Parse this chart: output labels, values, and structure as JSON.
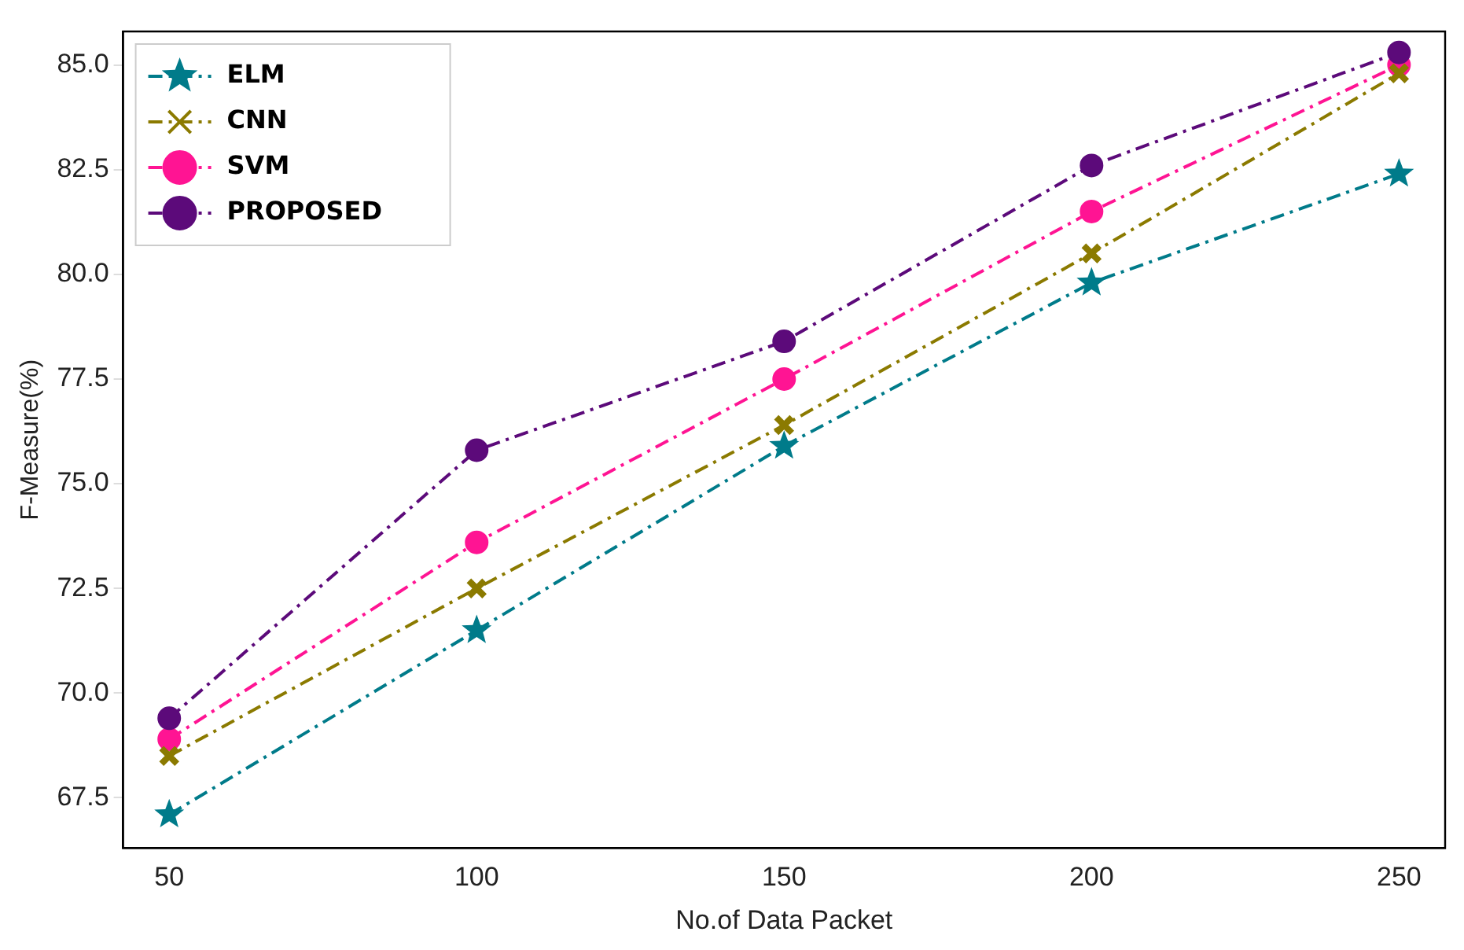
{
  "chart_data": {
    "type": "line",
    "xlabel": "No.of Data Packet",
    "ylabel": "F-Measure(%)",
    "x": [
      50,
      100,
      150,
      200,
      250
    ],
    "series": [
      {
        "name": "ELM",
        "color": "#007b8a",
        "marker": "star",
        "values": [
          67.1,
          71.5,
          75.9,
          79.8,
          82.4
        ]
      },
      {
        "name": "CNN",
        "color": "#8b7a00",
        "marker": "cross",
        "values": [
          68.5,
          72.5,
          76.4,
          80.5,
          84.8
        ]
      },
      {
        "name": "SVM",
        "color": "#ff1493",
        "marker": "circle",
        "values": [
          68.9,
          73.6,
          77.5,
          81.5,
          85.0
        ]
      },
      {
        "name": "PROPOSED",
        "color": "#5c0a7a",
        "marker": "circle",
        "values": [
          69.4,
          75.8,
          78.4,
          82.6,
          85.3
        ]
      }
    ],
    "xlim": [
      42.5,
      257.5
    ],
    "xticks": [
      50,
      100,
      150,
      200,
      250
    ],
    "ylim": [
      66.3,
      85.8
    ],
    "yticks": [
      {
        "value": 67.5,
        "label": "67.5"
      },
      {
        "value": 70,
        "label": "70.0"
      },
      {
        "value": 72.5,
        "label": "72.5"
      },
      {
        "value": 75,
        "label": "75.0"
      },
      {
        "value": 77.5,
        "label": "77.5"
      },
      {
        "value": 80,
        "label": "80.0"
      },
      {
        "value": 82.5,
        "label": "82.5"
      },
      {
        "value": 85,
        "label": "85.0"
      }
    ],
    "grid": false,
    "legend": "top left",
    "line_style": "dashed"
  }
}
